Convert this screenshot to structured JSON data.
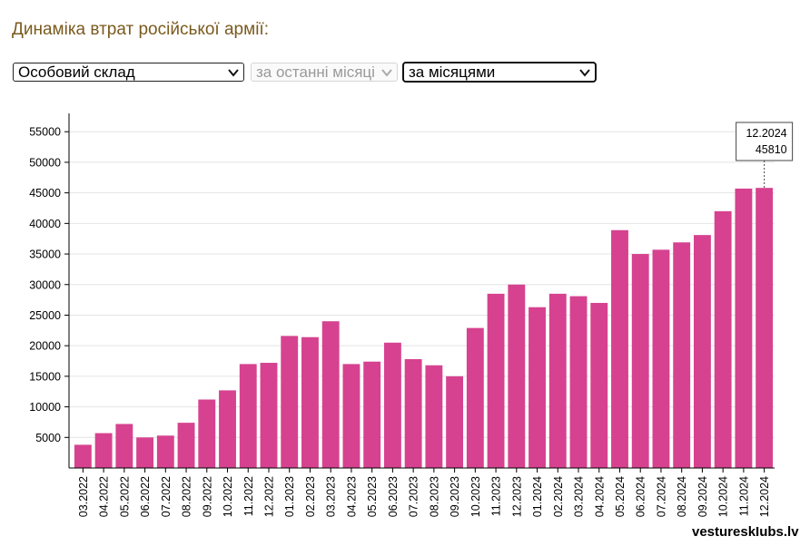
{
  "title": "Динаміка втрат російської армії:",
  "controls": {
    "category_select": "Особовий склад",
    "period_select": "за останні місяці",
    "grouping_select": "за місяцями"
  },
  "watermark": "vestureskIubs.lv",
  "colors": {
    "bar": "#d6428f",
    "title": "#7a5a1e"
  },
  "chart_data": {
    "type": "bar",
    "categories": [
      "03.2022",
      "04.2022",
      "05.2022",
      "06.2022",
      "07.2022",
      "08.2022",
      "09.2022",
      "10.2022",
      "11.2022",
      "12.2022",
      "01.2023",
      "02.2023",
      "03.2023",
      "04.2023",
      "05.2023",
      "06.2023",
      "07.2023",
      "08.2023",
      "09.2023",
      "10.2023",
      "11.2023",
      "12.2023",
      "01.2024",
      "02.2024",
      "03.2024",
      "04.2024",
      "05.2024",
      "06.2024",
      "07.2024",
      "08.2024",
      "09.2024",
      "10.2024",
      "11.2024",
      "12.2024"
    ],
    "values": [
      3800,
      5700,
      7200,
      5000,
      5300,
      7400,
      11200,
      12700,
      17000,
      17200,
      21600,
      21400,
      24000,
      17000,
      17400,
      20500,
      17800,
      16800,
      15000,
      22900,
      28500,
      30000,
      26300,
      28500,
      28100,
      27000,
      38900,
      35000,
      35700,
      36900,
      38100,
      42000,
      45700,
      45810
    ],
    "yticks": [
      5000,
      10000,
      15000,
      20000,
      25000,
      30000,
      35000,
      40000,
      45000,
      50000,
      55000
    ],
    "ylim": [
      0,
      58000
    ],
    "grid": true,
    "tooltip": {
      "label": "12.2024",
      "value": "45810"
    }
  }
}
